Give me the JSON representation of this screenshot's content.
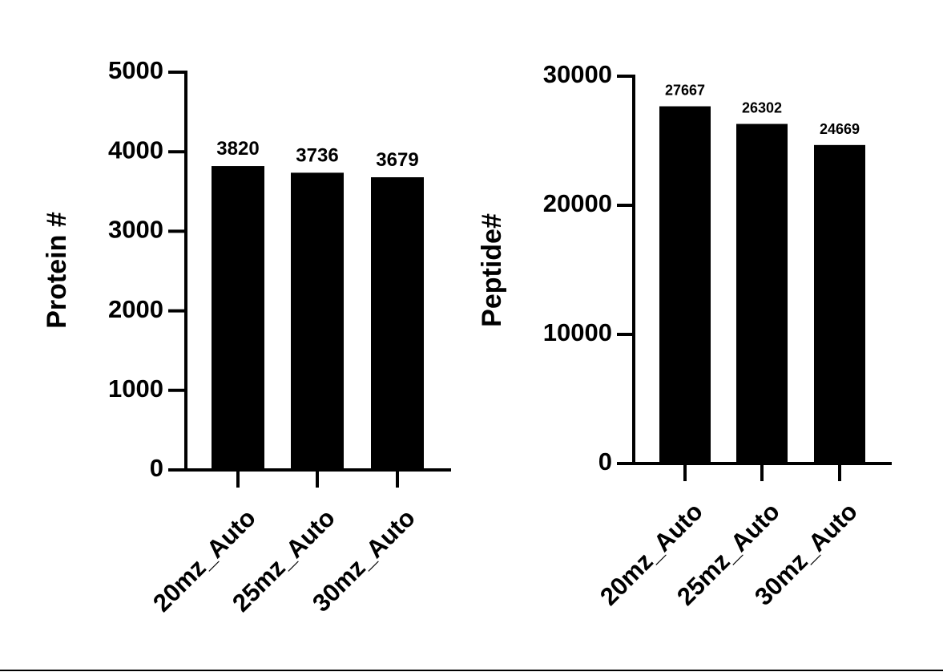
{
  "chart_data": [
    {
      "type": "bar",
      "y_label": "Protein #",
      "categories": [
        "20mz_Auto",
        "25mz_Auto",
        "30mz_Auto"
      ],
      "values": [
        3820,
        3736,
        3679
      ],
      "color": "#000000",
      "ylim": [
        0,
        5000
      ],
      "yticks": [
        0,
        1000,
        2000,
        3000,
        4000,
        5000
      ]
    },
    {
      "type": "bar",
      "y_label": "Peptide#",
      "categories": [
        "20mz_Auto",
        "25mz_Auto",
        "30mz_Auto"
      ],
      "values": [
        27667,
        26302,
        24669
      ],
      "color": "#000000",
      "ylim": [
        0,
        30000
      ],
      "yticks": [
        0,
        10000,
        20000,
        30000
      ]
    }
  ]
}
